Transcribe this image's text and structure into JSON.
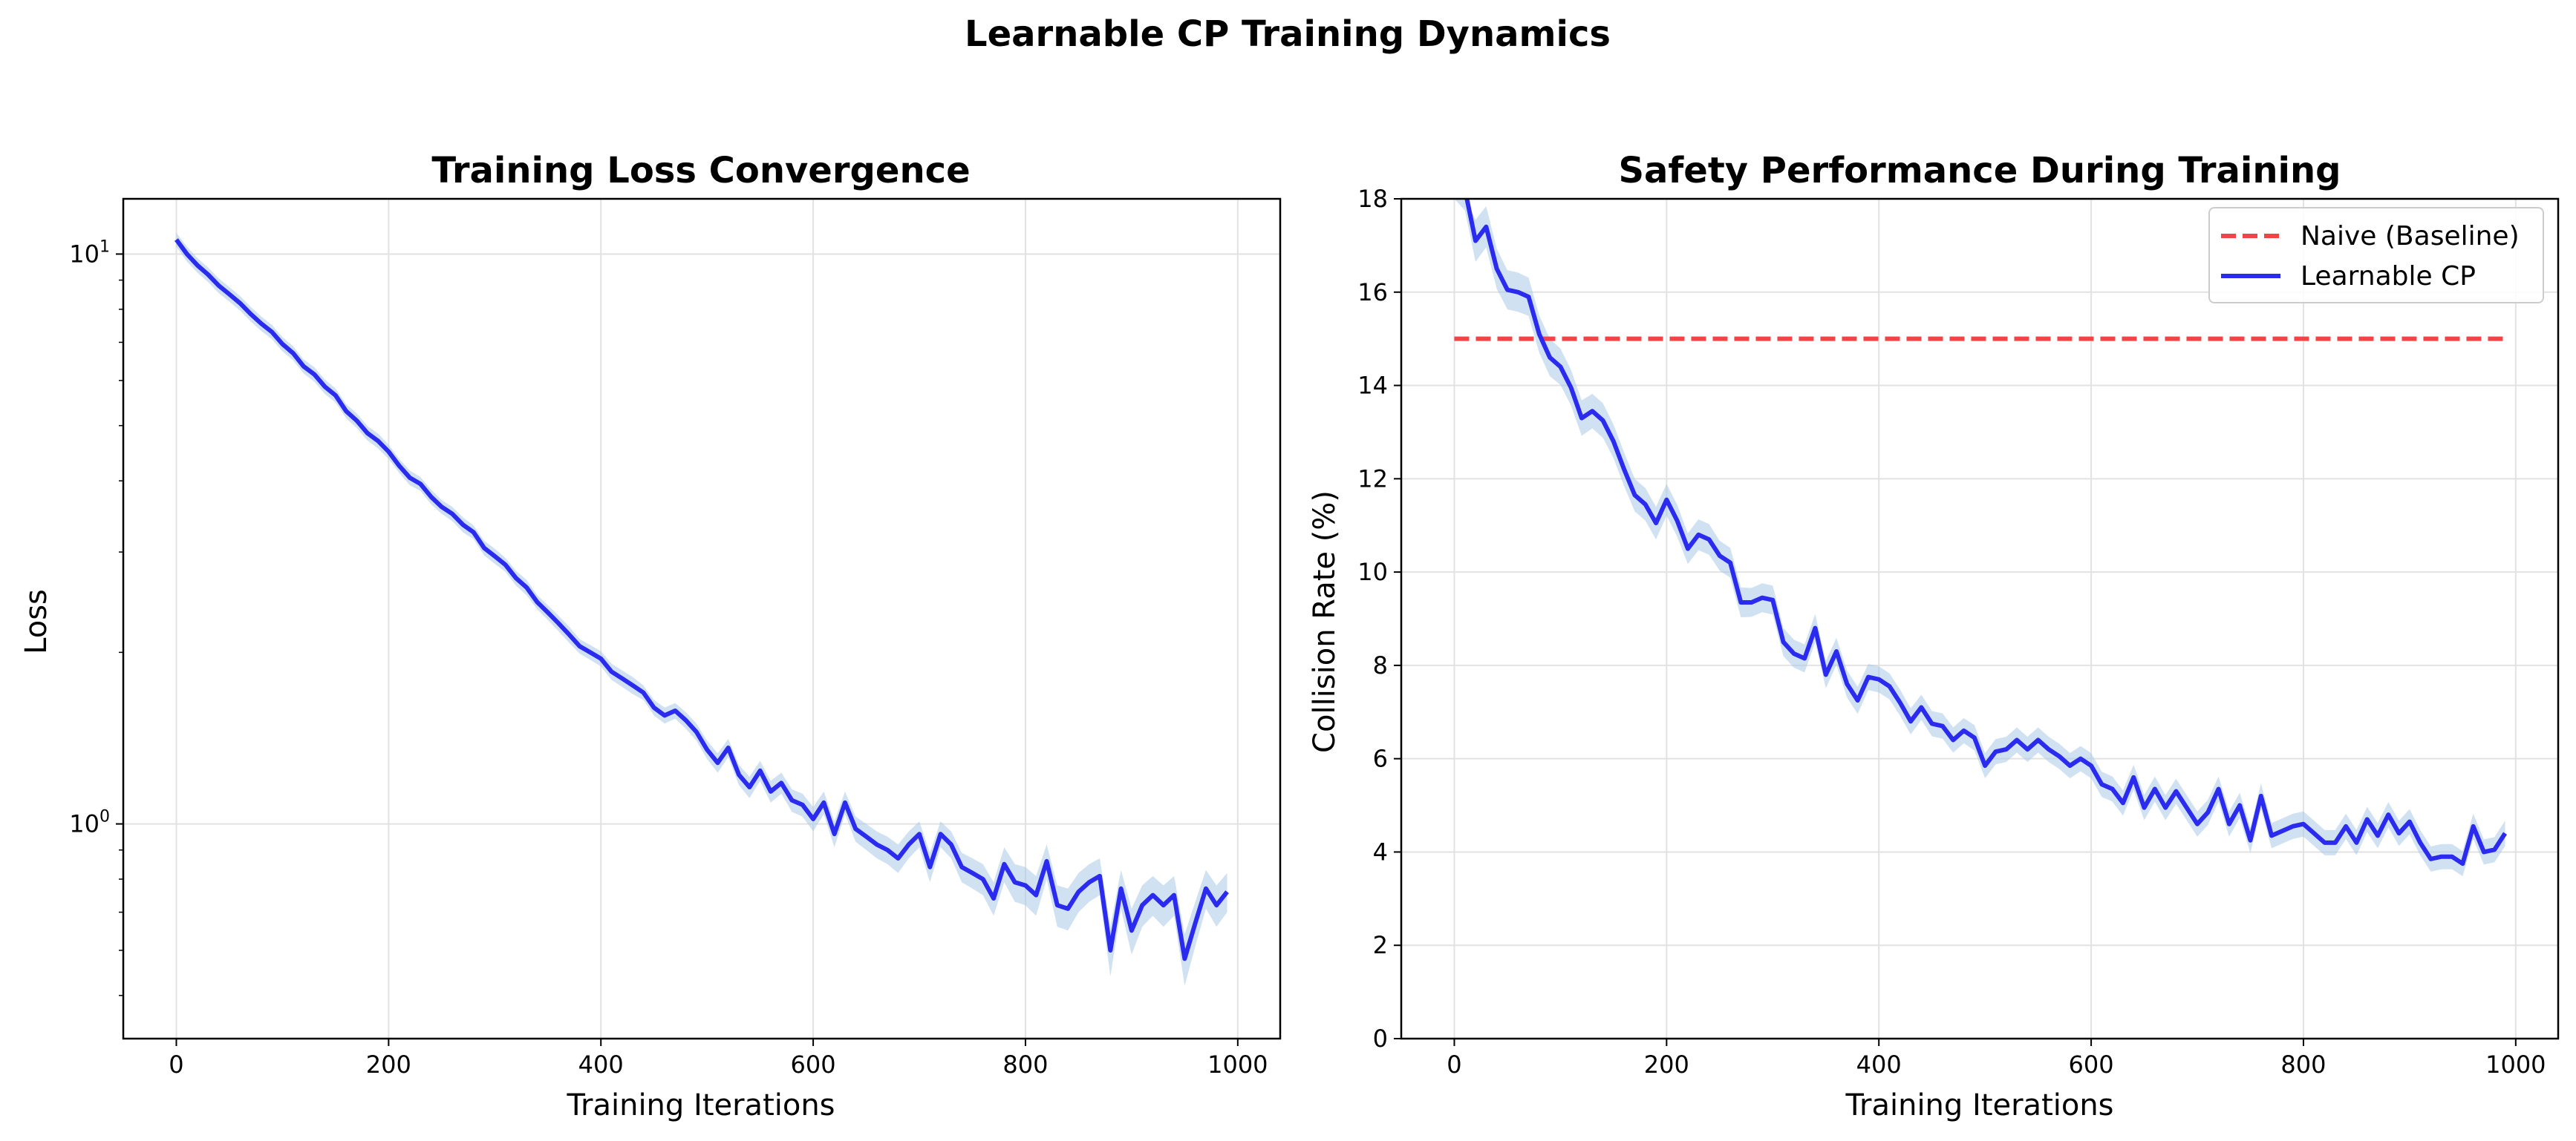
{
  "figure_title": "Learnable CP Training Dynamics",
  "colors": {
    "learnable": "#2b2bf0",
    "band": "#a9c9e6",
    "naive": "#f24444",
    "grid": "#e2e2e2"
  },
  "chart_data": [
    {
      "type": "line",
      "title": "Training Loss Convergence",
      "xlabel": "Training Iterations",
      "ylabel": "Loss",
      "yscale": "log",
      "xlim": [
        -50,
        1040
      ],
      "ylim": [
        0.42,
        12.5
      ],
      "grid": true,
      "xticks": [
        0,
        200,
        400,
        600,
        800,
        1000
      ],
      "xtick_labels": [
        "0",
        "200",
        "400",
        "600",
        "800",
        "1000"
      ],
      "ytick_labels": [
        {
          "base": "10",
          "exp": "0",
          "value": 1
        },
        {
          "base": "10",
          "exp": "1",
          "value": 10
        }
      ],
      "x": [
        0,
        10,
        20,
        30,
        40,
        50,
        60,
        70,
        80,
        90,
        100,
        110,
        120,
        130,
        140,
        150,
        160,
        170,
        180,
        190,
        200,
        210,
        220,
        230,
        240,
        250,
        260,
        270,
        280,
        290,
        300,
        310,
        320,
        330,
        340,
        350,
        360,
        370,
        380,
        390,
        400,
        410,
        420,
        430,
        440,
        450,
        460,
        470,
        480,
        490,
        500,
        510,
        520,
        530,
        540,
        550,
        560,
        570,
        580,
        590,
        600,
        610,
        620,
        630,
        640,
        650,
        660,
        670,
        680,
        690,
        700,
        710,
        720,
        730,
        740,
        750,
        760,
        770,
        780,
        790,
        800,
        810,
        820,
        830,
        840,
        850,
        860,
        870,
        880,
        890,
        900,
        910,
        920,
        930,
        940,
        950,
        960,
        970,
        980,
        990
      ],
      "series": [
        {
          "values": [
            10.6,
            10.0,
            9.55,
            9.2,
            8.8,
            8.5,
            8.2,
            7.85,
            7.55,
            7.3,
            6.95,
            6.7,
            6.35,
            6.15,
            5.85,
            5.65,
            5.3,
            5.1,
            4.85,
            4.7,
            4.5,
            4.25,
            4.05,
            3.95,
            3.75,
            3.6,
            3.5,
            3.35,
            3.25,
            3.05,
            2.95,
            2.85,
            2.7,
            2.6,
            2.45,
            2.35,
            2.25,
            2.15,
            2.05,
            2.0,
            1.95,
            1.85,
            1.8,
            1.75,
            1.7,
            1.6,
            1.55,
            1.58,
            1.52,
            1.45,
            1.35,
            1.28,
            1.36,
            1.22,
            1.16,
            1.24,
            1.14,
            1.18,
            1.1,
            1.08,
            1.02,
            1.09,
            0.96,
            1.09,
            0.98,
            0.95,
            0.92,
            0.9,
            0.87,
            0.92,
            0.96,
            0.84,
            0.96,
            0.92,
            0.84,
            0.82,
            0.8,
            0.74,
            0.85,
            0.79,
            0.78,
            0.75,
            0.86,
            0.72,
            0.71,
            0.76,
            0.79,
            0.81,
            0.6,
            0.77,
            0.65,
            0.72,
            0.75,
            0.72,
            0.75,
            0.58,
            0.67,
            0.77,
            0.72,
            0.76
          ],
          "band_halfwidth": [
            0.3,
            0.3,
            0.28,
            0.27,
            0.26,
            0.25,
            0.24,
            0.23,
            0.22,
            0.21,
            0.2,
            0.19,
            0.18,
            0.18,
            0.17,
            0.16,
            0.15,
            0.15,
            0.14,
            0.14,
            0.13,
            0.12,
            0.12,
            0.11,
            0.11,
            0.1,
            0.1,
            0.1,
            0.09,
            0.09,
            0.09,
            0.08,
            0.08,
            0.08,
            0.07,
            0.07,
            0.07,
            0.07,
            0.06,
            0.06,
            0.06,
            0.06,
            0.06,
            0.06,
            0.05,
            0.05,
            0.05,
            0.05,
            0.05,
            0.05,
            0.05,
            0.05,
            0.05,
            0.05,
            0.05,
            0.05,
            0.05,
            0.05,
            0.05,
            0.05,
            0.05,
            0.05,
            0.05,
            0.05,
            0.05,
            0.05,
            0.05,
            0.05,
            0.05,
            0.05,
            0.05,
            0.05,
            0.05,
            0.05,
            0.05,
            0.05,
            0.05,
            0.05,
            0.06,
            0.06,
            0.06,
            0.06,
            0.06,
            0.06,
            0.06,
            0.06,
            0.06,
            0.06,
            0.06,
            0.06,
            0.06,
            0.06,
            0.06,
            0.06,
            0.06,
            0.06,
            0.06,
            0.06,
            0.06,
            0.06
          ]
        }
      ]
    },
    {
      "type": "line",
      "title": "Safety Performance During Training",
      "xlabel": "Training Iterations",
      "ylabel": "Collision Rate (%)",
      "yscale": "linear",
      "xlim": [
        -50,
        1040
      ],
      "ylim": [
        0,
        18
      ],
      "grid": true,
      "legend": "top-right",
      "xticks": [
        0,
        200,
        400,
        600,
        800,
        1000
      ],
      "xtick_labels": [
        "0",
        "200",
        "400",
        "600",
        "800",
        "1000"
      ],
      "yticks": [
        0,
        2,
        4,
        6,
        8,
        10,
        12,
        14,
        16,
        18
      ],
      "ytick_labels": [
        "0",
        "2",
        "4",
        "6",
        "8",
        "10",
        "12",
        "14",
        "16",
        "18"
      ],
      "x": [
        0,
        10,
        20,
        30,
        40,
        50,
        60,
        70,
        80,
        90,
        100,
        110,
        120,
        130,
        140,
        150,
        160,
        170,
        180,
        190,
        200,
        210,
        220,
        230,
        240,
        250,
        260,
        270,
        280,
        290,
        300,
        310,
        320,
        330,
        340,
        350,
        360,
        370,
        380,
        390,
        400,
        410,
        420,
        430,
        440,
        450,
        460,
        470,
        480,
        490,
        500,
        510,
        520,
        530,
        540,
        550,
        560,
        570,
        580,
        590,
        600,
        610,
        620,
        630,
        640,
        650,
        660,
        670,
        680,
        690,
        700,
        710,
        720,
        730,
        740,
        750,
        760,
        770,
        780,
        790,
        800,
        810,
        820,
        830,
        840,
        850,
        860,
        870,
        880,
        890,
        900,
        910,
        920,
        930,
        940,
        950,
        960,
        970,
        980,
        990
      ],
      "series": [
        {
          "name": "Naive (Baseline)",
          "style": "dashed",
          "x": [
            0,
            990
          ],
          "values": [
            15,
            15
          ]
        },
        {
          "name": "Learnable CP",
          "style": "solid",
          "values": [
            19.0,
            18.2,
            17.1,
            17.4,
            16.5,
            16.05,
            16.0,
            15.9,
            15.1,
            14.6,
            14.4,
            13.95,
            13.3,
            13.45,
            13.25,
            12.8,
            12.2,
            11.65,
            11.45,
            11.05,
            11.55,
            11.1,
            10.5,
            10.8,
            10.7,
            10.35,
            10.2,
            9.35,
            9.35,
            9.45,
            9.4,
            8.5,
            8.25,
            8.15,
            8.8,
            7.8,
            8.3,
            7.6,
            7.25,
            7.75,
            7.7,
            7.55,
            7.2,
            6.8,
            7.1,
            6.75,
            6.7,
            6.4,
            6.6,
            6.45,
            5.85,
            6.15,
            6.2,
            6.4,
            6.2,
            6.4,
            6.2,
            6.05,
            5.85,
            6.0,
            5.85,
            5.45,
            5.35,
            5.05,
            5.6,
            4.95,
            5.35,
            4.95,
            5.3,
            4.95,
            4.6,
            4.85,
            5.35,
            4.6,
            5.0,
            4.25,
            5.2,
            4.35,
            4.45,
            4.55,
            4.6,
            4.4,
            4.2,
            4.2,
            4.55,
            4.2,
            4.7,
            4.35,
            4.8,
            4.4,
            4.65,
            4.2,
            3.85,
            3.9,
            3.9,
            3.75,
            4.55,
            4.0,
            4.05,
            4.4
          ],
          "band_halfwidth": [
            0.45,
            0.45,
            0.45,
            0.44,
            0.43,
            0.42,
            0.42,
            0.41,
            0.4,
            0.4,
            0.39,
            0.38,
            0.38,
            0.37,
            0.37,
            0.36,
            0.36,
            0.35,
            0.35,
            0.35,
            0.34,
            0.34,
            0.33,
            0.33,
            0.33,
            0.32,
            0.32,
            0.32,
            0.31,
            0.31,
            0.31,
            0.3,
            0.3,
            0.3,
            0.3,
            0.29,
            0.29,
            0.29,
            0.29,
            0.28,
            0.28,
            0.28,
            0.28,
            0.28,
            0.27,
            0.27,
            0.27,
            0.27,
            0.27,
            0.27,
            0.27,
            0.27,
            0.27,
            0.27,
            0.27,
            0.27,
            0.27,
            0.27,
            0.27,
            0.27,
            0.27,
            0.27,
            0.27,
            0.27,
            0.27,
            0.27,
            0.27,
            0.27,
            0.27,
            0.27,
            0.27,
            0.27,
            0.27,
            0.27,
            0.27,
            0.27,
            0.27,
            0.27,
            0.27,
            0.27,
            0.27,
            0.27,
            0.27,
            0.27,
            0.27,
            0.27,
            0.27,
            0.27,
            0.27,
            0.27,
            0.27,
            0.27,
            0.27,
            0.27,
            0.27,
            0.27,
            0.27,
            0.27,
            0.27,
            0.27
          ]
        }
      ]
    }
  ]
}
